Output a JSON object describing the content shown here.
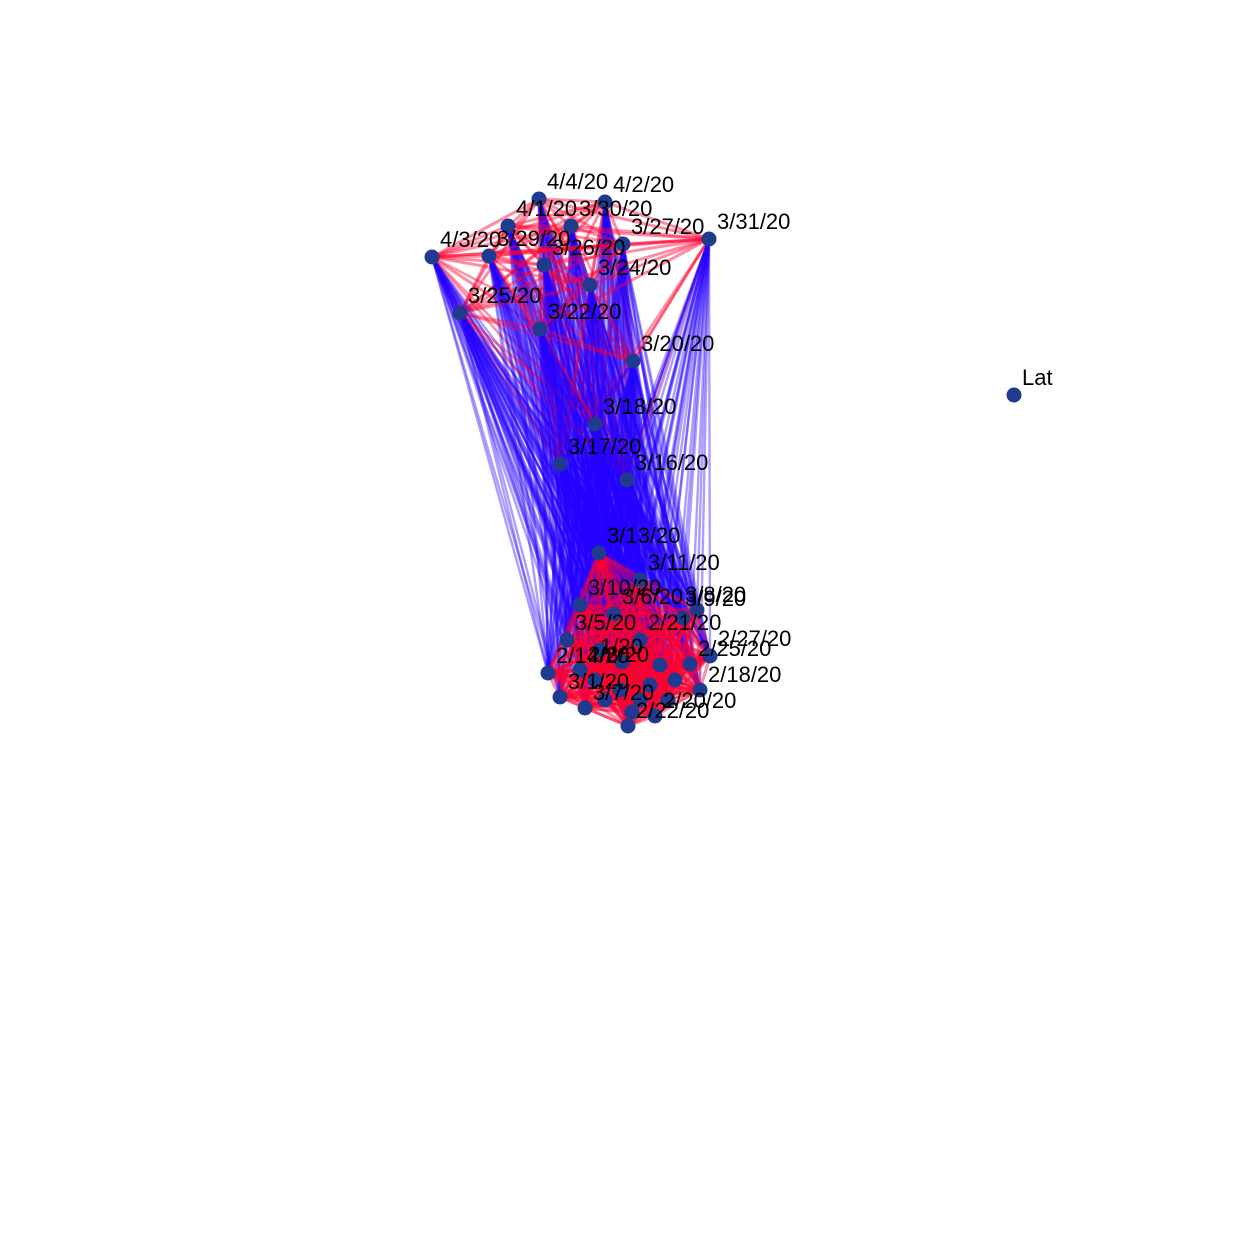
{
  "graph": {
    "type": "network",
    "colors": {
      "node": "#1f3a8f",
      "edge_strong": "#ff0030",
      "edge_weak": "#2400ff",
      "background": "#ffffff"
    },
    "nodes": [
      {
        "id": "4/4/20",
        "label": "4/4/20"
      },
      {
        "id": "4/2/20",
        "label": "4/2/20"
      },
      {
        "id": "4/1/20",
        "label": "4/1/20"
      },
      {
        "id": "3/30/20",
        "label": "3/30/20"
      },
      {
        "id": "3/27/20",
        "label": "3/27/20"
      },
      {
        "id": "3/31/20",
        "label": "3/31/20"
      },
      {
        "id": "4/3/20",
        "label": "4/3/20"
      },
      {
        "id": "3/29/20",
        "label": "3/29/20"
      },
      {
        "id": "3/26/20",
        "label": "3/26/20"
      },
      {
        "id": "3/24/20",
        "label": "3/24/20"
      },
      {
        "id": "3/25/20",
        "label": "3/25/20"
      },
      {
        "id": "3/22/20",
        "label": "3/22/20"
      },
      {
        "id": "3/20/20",
        "label": "3/20/20"
      },
      {
        "id": "3/18/20",
        "label": "3/18/20"
      },
      {
        "id": "3/17/20",
        "label": "3/17/20"
      },
      {
        "id": "3/16/20",
        "label": "3/16/20"
      },
      {
        "id": "3/13/20",
        "label": "3/13/20"
      },
      {
        "id": "3/11/20",
        "label": "3/11/20"
      },
      {
        "id": "3/10/20",
        "label": "3/10/20"
      },
      {
        "id": "3/8/20",
        "label": "3/8/20"
      },
      {
        "id": "3/6/20",
        "label": "3/6/20"
      },
      {
        "id": "3/9/20",
        "label": "3/9/20"
      },
      {
        "id": "3/5/20",
        "label": "3/5/20"
      },
      {
        "id": "2/21/20",
        "label": "2/21/20"
      },
      {
        "id": "2/27/20",
        "label": "2/27/20"
      },
      {
        "id": "2/25/20",
        "label": "2/25/20"
      },
      {
        "id": "2/14/20",
        "label": "2/14/20"
      },
      {
        "id": "2/8/20",
        "label": "2/8/20"
      },
      {
        "id": "2/18/20",
        "label": "2/18/20"
      },
      {
        "id": "3/1/20",
        "label": "3/1/20"
      },
      {
        "id": "3/7/20",
        "label": "3/7/20"
      },
      {
        "id": "2/22/20",
        "label": "2/22/20"
      },
      {
        "id": "2/20/20",
        "label": "2/20/20"
      },
      {
        "id": "1/20",
        "label": "1/20"
      },
      {
        "id": "c-a",
        "label": ""
      },
      {
        "id": "c-b",
        "label": ""
      },
      {
        "id": "c-c",
        "label": ""
      },
      {
        "id": "c-d",
        "label": ""
      },
      {
        "id": "c-e",
        "label": ""
      },
      {
        "id": "c-f",
        "label": ""
      },
      {
        "id": "c-g",
        "label": ""
      },
      {
        "id": "c-h",
        "label": ""
      },
      {
        "id": "c-i",
        "label": ""
      },
      {
        "id": "c-j",
        "label": ""
      },
      {
        "id": "Lat",
        "label": "Lat"
      }
    ],
    "isolated_nodes": [
      "Lat"
    ]
  }
}
